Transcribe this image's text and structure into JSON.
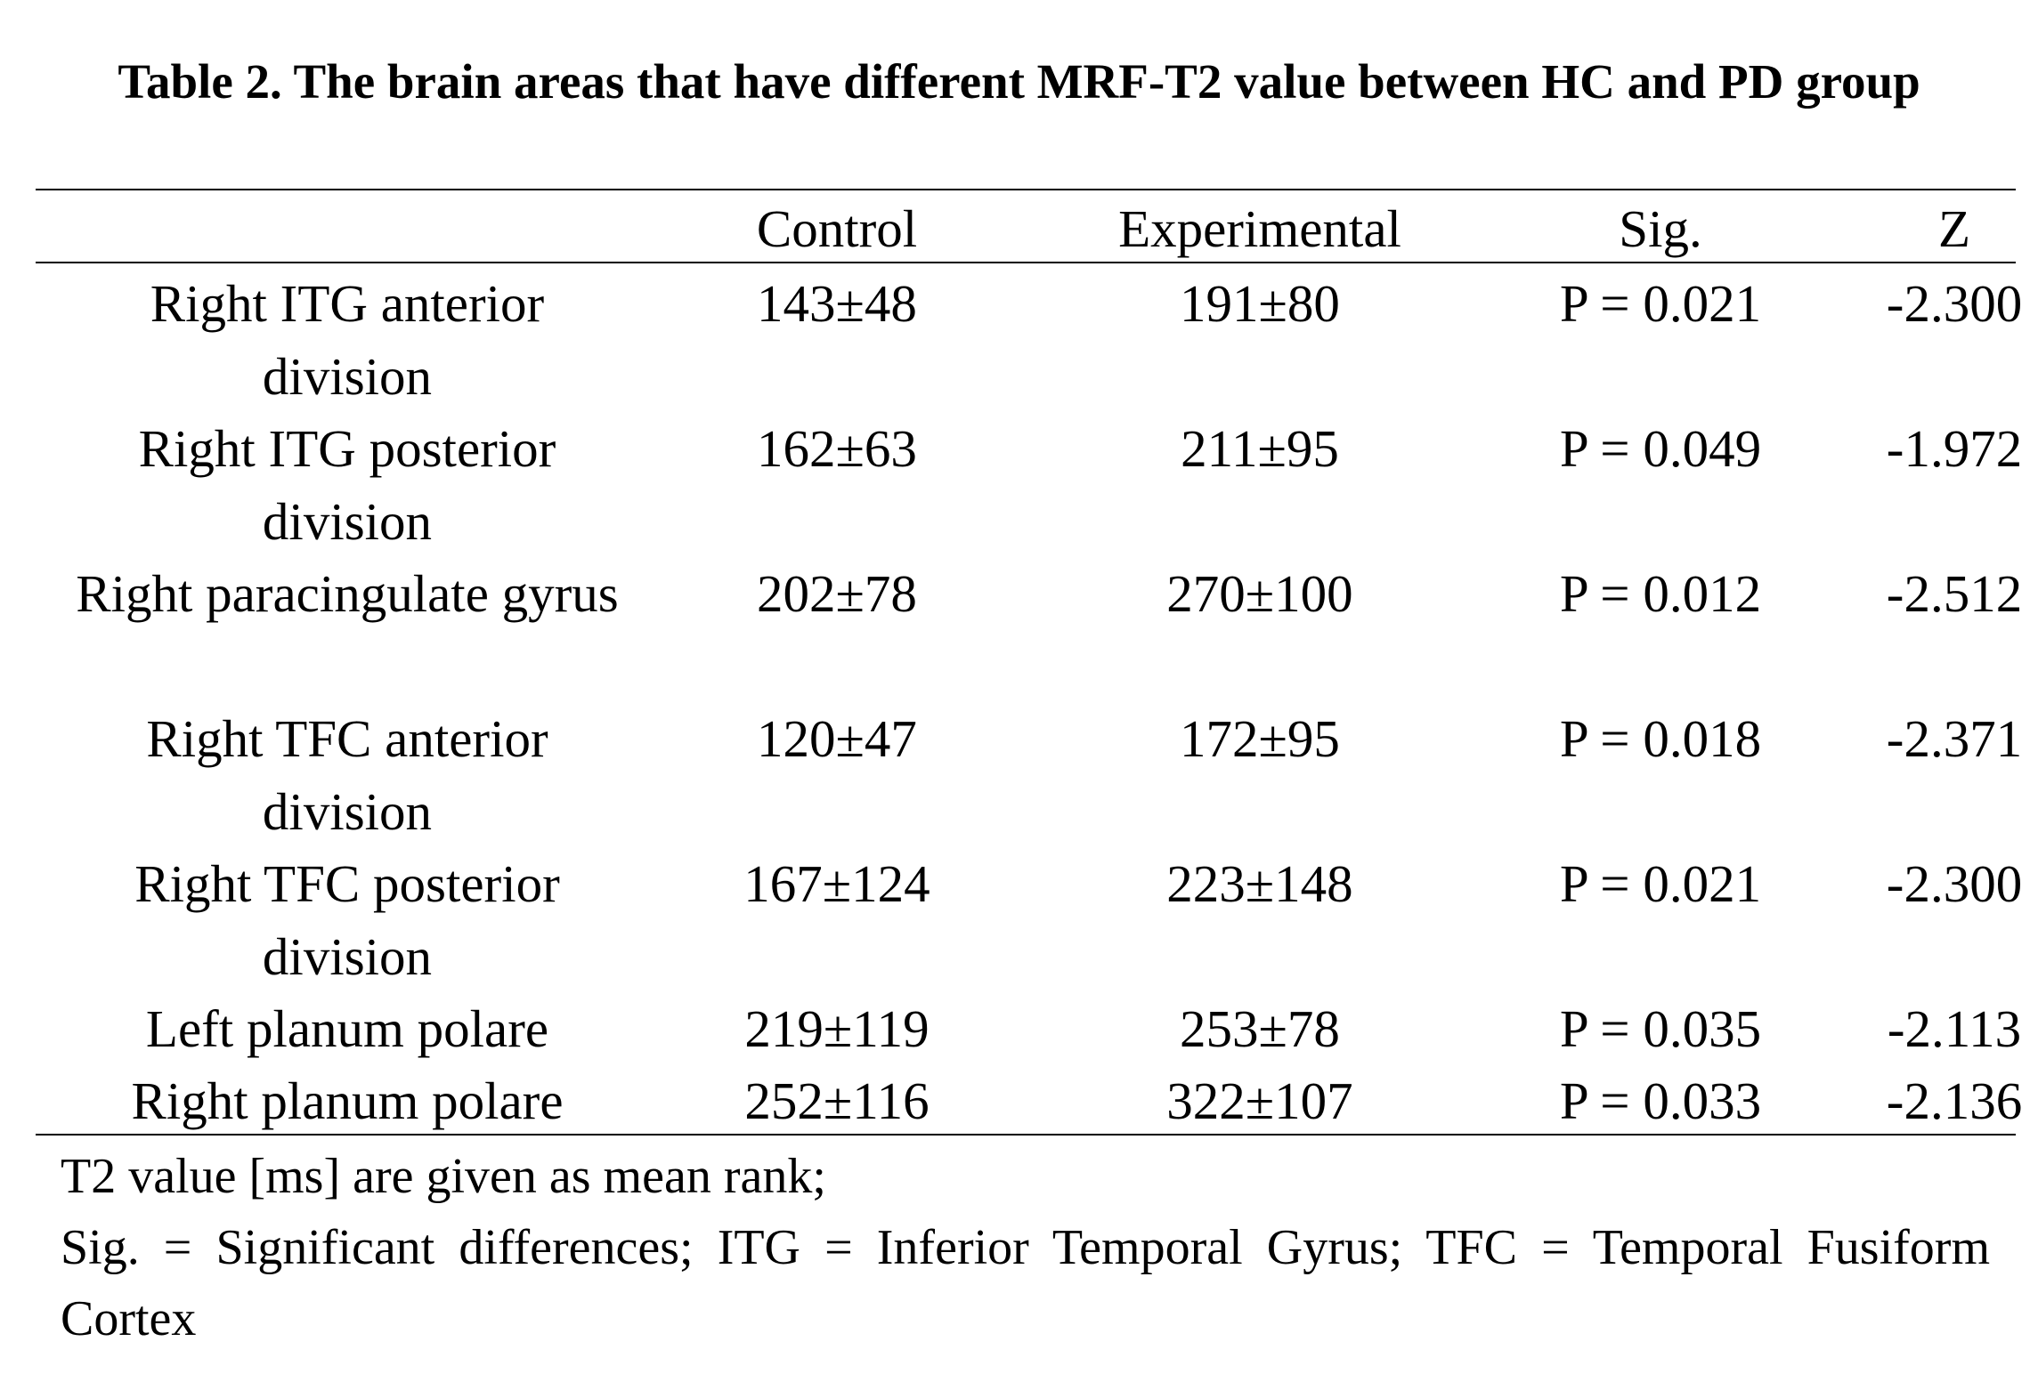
{
  "title": "Table 2. The brain areas that have different MRF-T2 value between HC and PD group",
  "columns": [
    "",
    "Control",
    "Experimental",
    "Sig.",
    "Z"
  ],
  "rows": [
    {
      "region": "Right ITG anterior division",
      "control": "143±48",
      "experimental": "191±80",
      "sig": "P = 0.021",
      "z": "-2.300"
    },
    {
      "region": "Right ITG posterior division",
      "control": "162±63",
      "experimental": "211±95",
      "sig": "P = 0.049",
      "z": "-1.972"
    },
    {
      "region": "Right paracingulate gyrus",
      "control": "202±78",
      "experimental": "270±100",
      "sig": "P = 0.012",
      "z": "-2.512"
    },
    {
      "region": "Right TFC anterior division",
      "control": "120±47",
      "experimental": "172±95",
      "sig": "P = 0.018",
      "z": "-2.371"
    },
    {
      "region": "Right TFC posterior division",
      "control": "167±124",
      "experimental": "223±148",
      "sig": "P = 0.021",
      "z": "-2.300"
    },
    {
      "region": "Left planum polare",
      "control": "219±119",
      "experimental": "253±78",
      "sig": "P = 0.035",
      "z": "-2.113"
    },
    {
      "region": "Right planum polare",
      "control": "252±116",
      "experimental": "322±107",
      "sig": "P = 0.033",
      "z": "-2.136"
    }
  ],
  "notes": {
    "line1": "T2 value [ms] are given as mean rank;",
    "line2": "Sig. = Significant differences; ITG = Inferior Temporal Gyrus; TFC = Temporal Fusiform Cortex"
  }
}
